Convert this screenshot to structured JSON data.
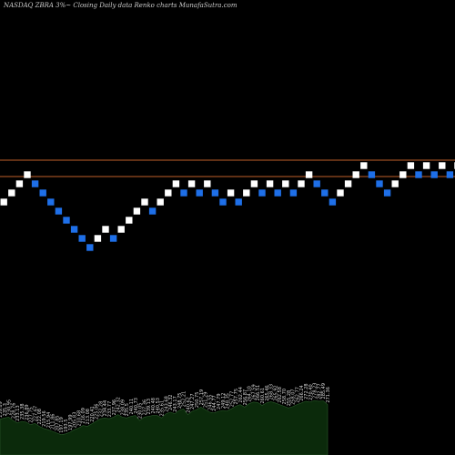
{
  "header": {
    "title": "NASDAQ ZBRA 3%~  Closing Daily data  Renko  charts MunafaSutra.com"
  },
  "chart_data": {
    "type": "renko",
    "symbol": "NASDAQ ZBRA",
    "box_size": "3%",
    "colors": {
      "background": "#000000",
      "up_brick": "#ffffff",
      "down_brick": "#1e6fe8",
      "level_line": "#c0602a",
      "volume_fill": "#0b2a0b",
      "volume_line": "#2a5a2a"
    },
    "levels": [
      0,
      -1.8
    ],
    "bricks": [
      {
        "level": -4.6,
        "dir": "up"
      },
      {
        "level": -3.6,
        "dir": "up"
      },
      {
        "level": -2.6,
        "dir": "up"
      },
      {
        "level": -1.6,
        "dir": "up"
      },
      {
        "level": -2.6,
        "dir": "down"
      },
      {
        "level": -3.6,
        "dir": "down"
      },
      {
        "level": -4.6,
        "dir": "down"
      },
      {
        "level": -5.6,
        "dir": "down"
      },
      {
        "level": -6.6,
        "dir": "down"
      },
      {
        "level": -7.6,
        "dir": "down"
      },
      {
        "level": -8.6,
        "dir": "down"
      },
      {
        "level": -9.6,
        "dir": "down"
      },
      {
        "level": -8.6,
        "dir": "up"
      },
      {
        "level": -7.6,
        "dir": "up"
      },
      {
        "level": -8.6,
        "dir": "down"
      },
      {
        "level": -7.6,
        "dir": "up"
      },
      {
        "level": -6.6,
        "dir": "up"
      },
      {
        "level": -5.6,
        "dir": "up"
      },
      {
        "level": -4.6,
        "dir": "up"
      },
      {
        "level": -5.6,
        "dir": "down"
      },
      {
        "level": -4.6,
        "dir": "up"
      },
      {
        "level": -3.6,
        "dir": "up"
      },
      {
        "level": -2.6,
        "dir": "up"
      },
      {
        "level": -3.6,
        "dir": "down"
      },
      {
        "level": -2.6,
        "dir": "up"
      },
      {
        "level": -3.6,
        "dir": "down"
      },
      {
        "level": -2.6,
        "dir": "up"
      },
      {
        "level": -3.6,
        "dir": "down"
      },
      {
        "level": -4.6,
        "dir": "down"
      },
      {
        "level": -3.6,
        "dir": "up"
      },
      {
        "level": -4.6,
        "dir": "down"
      },
      {
        "level": -3.6,
        "dir": "up"
      },
      {
        "level": -2.6,
        "dir": "up"
      },
      {
        "level": -3.6,
        "dir": "down"
      },
      {
        "level": -2.6,
        "dir": "up"
      },
      {
        "level": -3.6,
        "dir": "down"
      },
      {
        "level": -2.6,
        "dir": "up"
      },
      {
        "level": -3.6,
        "dir": "down"
      },
      {
        "level": -2.6,
        "dir": "up"
      },
      {
        "level": -1.6,
        "dir": "up"
      },
      {
        "level": -2.6,
        "dir": "down"
      },
      {
        "level": -3.6,
        "dir": "down"
      },
      {
        "level": -4.6,
        "dir": "down"
      },
      {
        "level": -3.6,
        "dir": "up"
      },
      {
        "level": -2.6,
        "dir": "up"
      },
      {
        "level": -1.6,
        "dir": "up"
      },
      {
        "level": -0.6,
        "dir": "up"
      },
      {
        "level": -1.6,
        "dir": "down"
      },
      {
        "level": -2.6,
        "dir": "down"
      },
      {
        "level": -3.6,
        "dir": "down"
      },
      {
        "level": -2.6,
        "dir": "up"
      },
      {
        "level": -1.6,
        "dir": "up"
      },
      {
        "level": -0.6,
        "dir": "up"
      },
      {
        "level": -1.6,
        "dir": "down"
      },
      {
        "level": -0.6,
        "dir": "up"
      },
      {
        "level": -1.6,
        "dir": "down"
      },
      {
        "level": -0.6,
        "dir": "up"
      },
      {
        "level": -1.6,
        "dir": "down"
      },
      {
        "level": -0.6,
        "dir": "up"
      },
      {
        "level": 0.4,
        "dir": "up"
      },
      {
        "level": -0.6,
        "dir": "down"
      }
    ],
    "price_labels": [
      "239.89",
      "235.3",
      "230.95",
      "228.76",
      "233.13",
      "235.38",
      "236.89",
      "227.75",
      "227.67",
      "222.08",
      "219.56",
      "215.94",
      "211.86",
      "207.85",
      "197.19",
      "193.5",
      "197.99",
      "205.83",
      "210.68",
      "216.09",
      "213.08",
      "220.41",
      "225.06",
      "232.28",
      "234.44",
      "233.77",
      "237.96",
      "242.32",
      "238.09",
      "235.5",
      "240.11",
      "240.73",
      "230.05",
      "237.36",
      "239.13",
      "240.48",
      "240.53",
      "235.61",
      "243.68",
      "246.32",
      "243.17",
      "248.75",
      "252.21",
      "240.62",
      "247.27",
      "250.75",
      "257.19",
      "251.29",
      "246.55",
      "244.77",
      "247.79",
      "249.12",
      "248.35",
      "252.77",
      "257.75",
      "262.44",
      "256.87",
      "264.10",
      "267.59",
      "266.51",
      "260.61",
      "265.46",
      "268.33",
      "265.92",
      "262.58",
      "258.70",
      "255.28",
      "258.07",
      "262.77",
      "266.24",
      "272.28",
      "270.40",
      "278.23",
      "282.77",
      "285.49",
      "271.36"
    ],
    "volume_profile": [
      0.55,
      0.58,
      0.6,
      0.52,
      0.46,
      0.5,
      0.48,
      0.42,
      0.45,
      0.38,
      0.33,
      0.3,
      0.26,
      0.22,
      0.18,
      0.2,
      0.24,
      0.3,
      0.34,
      0.4,
      0.38,
      0.44,
      0.5,
      0.56,
      0.58,
      0.56,
      0.6,
      0.66,
      0.6,
      0.58,
      0.62,
      0.64,
      0.52,
      0.6,
      0.62,
      0.64,
      0.64,
      0.58,
      0.68,
      0.72,
      0.68,
      0.76,
      0.8,
      0.66,
      0.74,
      0.78,
      0.84,
      0.78,
      0.72,
      0.7,
      0.74,
      0.76,
      0.75,
      0.8,
      0.86,
      0.9,
      0.84,
      0.92,
      0.96,
      0.95,
      0.88,
      0.94,
      0.97,
      0.94,
      0.9,
      0.86,
      0.82,
      0.85,
      0.9,
      0.94,
      0.98,
      0.96,
      1.0,
      0.98,
      0.99,
      0.9
    ]
  }
}
